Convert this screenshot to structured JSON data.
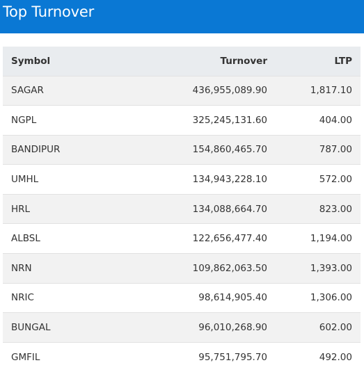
{
  "header": {
    "title": "Top Turnover"
  },
  "colors": {
    "header_bg": "#0a78d4",
    "header_text": "#ffffff",
    "thead_bg": "#e9ecef",
    "row_alt_bg": "#f2f2f2"
  },
  "table": {
    "columns": [
      "Symbol",
      "Turnover",
      "LTP"
    ],
    "rows": [
      {
        "symbol": "SAGAR",
        "turnover": "436,955,089.90",
        "ltp": "1,817.10"
      },
      {
        "symbol": "NGPL",
        "turnover": "325,245,131.60",
        "ltp": "404.00"
      },
      {
        "symbol": "BANDIPUR",
        "turnover": "154,860,465.70",
        "ltp": "787.00"
      },
      {
        "symbol": "UMHL",
        "turnover": "134,943,228.10",
        "ltp": "572.00"
      },
      {
        "symbol": "HRL",
        "turnover": "134,088,664.70",
        "ltp": "823.00"
      },
      {
        "symbol": "ALBSL",
        "turnover": "122,656,477.40",
        "ltp": "1,194.00"
      },
      {
        "symbol": "NRN",
        "turnover": "109,862,063.50",
        "ltp": "1,393.00"
      },
      {
        "symbol": "NRIC",
        "turnover": "98,614,905.40",
        "ltp": "1,306.00"
      },
      {
        "symbol": "BUNGAL",
        "turnover": "96,010,268.90",
        "ltp": "602.00"
      },
      {
        "symbol": "GMFIL",
        "turnover": "95,751,795.70",
        "ltp": "492.00"
      }
    ]
  }
}
